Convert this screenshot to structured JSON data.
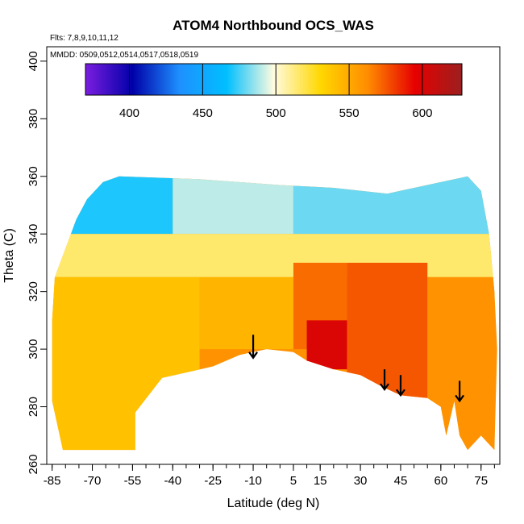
{
  "chart_data": {
    "type": "heatmap",
    "title": "ATOM4 Northbound OCS_WAS",
    "annotations": [
      "Flts: 7,8,9,10,11,12",
      "MMDD: 0509,0512,0514,0517,0518,0519"
    ],
    "xlabel": "Latitude (deg N)",
    "ylabel": "Theta (C)",
    "xlim": [
      -87,
      82
    ],
    "ylim": [
      260,
      405
    ],
    "x_ticks": [
      -85,
      -70,
      -55,
      -40,
      -25,
      -10,
      5,
      15,
      30,
      45,
      60,
      75
    ],
    "y_ticks": [
      260,
      280,
      300,
      320,
      340,
      360,
      380,
      400
    ],
    "colorbar": {
      "min": 370,
      "max": 627,
      "ticks": [
        400,
        450,
        500,
        550,
        600
      ],
      "colors": [
        "#7b1de0",
        "#0000a8",
        "#1e90ff",
        "#00bfff",
        "#fffbe0",
        "#ffd700",
        "#ff8c00",
        "#e60000",
        "#9c1f1f"
      ]
    },
    "surface_boundary": [
      [
        -81,
        265
      ],
      [
        -54,
        265
      ],
      [
        -54,
        278
      ],
      [
        -44,
        290
      ],
      [
        -25,
        294
      ],
      [
        -15,
        298
      ],
      [
        -5,
        300
      ],
      [
        5,
        299
      ],
      [
        10,
        296
      ],
      [
        20,
        293
      ],
      [
        30,
        291
      ],
      [
        38,
        287
      ],
      [
        45,
        284
      ],
      [
        55,
        283
      ],
      [
        60,
        280
      ],
      [
        62,
        270
      ],
      [
        65,
        282
      ],
      [
        67,
        270
      ],
      [
        70,
        265
      ],
      [
        75,
        270
      ],
      [
        80,
        265
      ]
    ],
    "upper_boundary": [
      [
        -85,
        282
      ],
      [
        -85,
        310
      ],
      [
        -84,
        325
      ],
      [
        -80,
        335
      ],
      [
        -76,
        345
      ],
      [
        -72,
        352
      ],
      [
        -66,
        358
      ],
      [
        -60,
        360
      ],
      [
        -30,
        359
      ],
      [
        0,
        357
      ],
      [
        20,
        356
      ],
      [
        40,
        354
      ],
      [
        60,
        358
      ],
      [
        70,
        360
      ],
      [
        75,
        355
      ],
      [
        78,
        340
      ],
      [
        80,
        320
      ],
      [
        81,
        300
      ]
    ],
    "regions": [
      {
        "x": [
          -85,
          -40
        ],
        "y": [
          340,
          362
        ],
        "value": 470
      },
      {
        "x": [
          -40,
          5
        ],
        "y": [
          340,
          360
        ],
        "value": 490
      },
      {
        "x": [
          5,
          80
        ],
        "y": [
          340,
          360
        ],
        "value": 480
      },
      {
        "x": [
          -85,
          80
        ],
        "y": [
          325,
          340
        ],
        "value": 515
      },
      {
        "x": [
          -85,
          -30
        ],
        "y": [
          265,
          325
        ],
        "value": 540
      },
      {
        "x": [
          -30,
          5
        ],
        "y": [
          300,
          325
        ],
        "value": 545
      },
      {
        "x": [
          5,
          25
        ],
        "y": [
          300,
          330
        ],
        "value": 570
      },
      {
        "x": [
          25,
          55
        ],
        "y": [
          280,
          330
        ],
        "value": 575
      },
      {
        "x": [
          10,
          25
        ],
        "y": [
          293,
          310
        ],
        "value": 600
      },
      {
        "x": [
          55,
          80
        ],
        "y": [
          265,
          325
        ],
        "value": 560
      }
    ],
    "arrows": [
      {
        "lat": -10,
        "theta_top": 305,
        "theta_tip": 297
      },
      {
        "lat": 39,
        "theta_top": 293,
        "theta_tip": 286
      },
      {
        "lat": 45,
        "theta_top": 291,
        "theta_tip": 284
      },
      {
        "lat": 67,
        "theta_top": 289,
        "theta_tip": 282
      }
    ]
  }
}
